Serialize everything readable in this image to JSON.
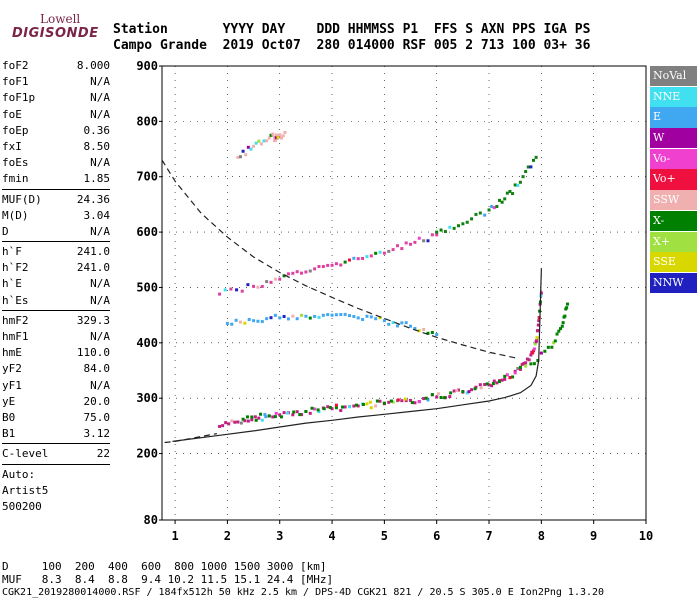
{
  "logo": {
    "top": "Lowell",
    "main": "DIGISONDE"
  },
  "header": {
    "row1": "Station       YYYY DAY    DDD HHMMSS P1  FFS S AXN PPS IGA PS",
    "row2": "Campo Grande  2019 Oct07  280 014000 RSF 005 2 713 100 03+ 36"
  },
  "params": {
    "g1": [
      [
        "foF2",
        "8.000"
      ],
      [
        "foF1",
        "N/A"
      ],
      [
        "foF1p",
        "N/A"
      ],
      [
        "foE",
        "N/A"
      ],
      [
        "foEp",
        "0.36"
      ],
      [
        "fxI",
        "8.50"
      ],
      [
        "foEs",
        "N/A"
      ],
      [
        "fmin",
        "1.85"
      ]
    ],
    "g2": [
      [
        "MUF(D)",
        "24.36"
      ],
      [
        "M(D)",
        "3.04"
      ],
      [
        "D",
        "N/A"
      ]
    ],
    "g3": [
      [
        "h`F",
        "241.0"
      ],
      [
        "h`F2",
        "241.0"
      ],
      [
        "h`E",
        "N/A"
      ],
      [
        "h`Es",
        "N/A"
      ]
    ],
    "g4": [
      [
        "hmF2",
        "329.3"
      ],
      [
        "hmF1",
        "N/A"
      ],
      [
        "hmE",
        "110.0"
      ],
      [
        "yF2",
        "84.0"
      ],
      [
        "yF1",
        "N/A"
      ],
      [
        "yE",
        "20.0"
      ],
      [
        "B0",
        "75.0"
      ],
      [
        "B1",
        "3.12"
      ]
    ],
    "g5": [
      [
        "C-level",
        "22"
      ]
    ],
    "autoscaler": [
      "Auto:",
      "Artist5",
      "500200"
    ]
  },
  "legend": [
    {
      "label": "NoVal",
      "color": "#808080"
    },
    {
      "label": "NNE",
      "color": "#40e0f0"
    },
    {
      "label": "E",
      "color": "#40a8f0"
    },
    {
      "label": "W",
      "color": "#a000a0"
    },
    {
      "label": "Vo-",
      "color": "#f040d0"
    },
    {
      "label": "Vo+",
      "color": "#f01040"
    },
    {
      "label": "SSW",
      "color": "#f0b0b0"
    },
    {
      "label": "X-",
      "color": "#008000"
    },
    {
      "label": "X+",
      "color": "#a0e040"
    },
    {
      "label": "SSE",
      "color": "#d8d800"
    },
    {
      "label": "NNW",
      "color": "#2020c0"
    }
  ],
  "footer": {
    "d_row": "D     100  200  400  600  800 1000 1500 3000 [km]",
    "muf_row": "MUF   8.3  8.4  8.8  9.4 10.2 11.5 15.1 24.4 [MHz]",
    "info": "CGK21_2019280014000.RSF / 184fx512h 50 kHz 2.5 km / DPS-4D CGK21 821 / 20.5 S 305.0 E Ion2Png 1.3.20"
  },
  "chart_data": {
    "type": "scatter",
    "xlim": [
      0.75,
      10
    ],
    "ylim": [
      80,
      900
    ],
    "x_ticks": [
      1,
      2,
      3,
      4,
      5,
      6,
      7,
      8,
      9,
      10
    ],
    "y_ticks": [
      80,
      200,
      300,
      400,
      500,
      600,
      700,
      800,
      900
    ],
    "grid": true,
    "series": [
      {
        "name": "O-trace (hmF2 profile)",
        "color": "#c02080",
        "x": [
          1.85,
          2.2,
          2.6,
          3.0,
          3.5,
          4.0,
          4.5,
          5.0,
          5.5,
          6.0,
          6.5,
          7.0,
          7.3,
          7.6,
          7.8,
          7.9,
          7.95,
          8.0
        ],
        "y": [
          249,
          257,
          264,
          270,
          276,
          281,
          286,
          290,
          296,
          302,
          311,
          324,
          334,
          352,
          378,
          402,
          440,
          490
        ]
      },
      {
        "name": "X-trace",
        "color": "#008000",
        "x": [
          2.3,
          2.8,
          3.5,
          4.2,
          5.0,
          5.8,
          6.5,
          7.2,
          7.8,
          8.2,
          8.4,
          8.5
        ],
        "y": [
          262,
          268,
          276,
          284,
          291,
          300,
          312,
          330,
          362,
          392,
          430,
          470
        ]
      },
      {
        "name": "Second-hop",
        "color": "#e040a0",
        "x": [
          1.85,
          2.5,
          3.0,
          3.5,
          4.0,
          4.5,
          5.0,
          5.5,
          6.0
        ],
        "y": [
          488,
          502,
          515,
          528,
          540,
          552,
          562,
          578,
          595
        ]
      },
      {
        "name": "Second-hop X",
        "color": "#108010",
        "x": [
          6.0,
          6.5,
          7.0,
          7.3,
          7.6,
          7.9
        ],
        "y": [
          600,
          615,
          640,
          660,
          690,
          735
        ]
      },
      {
        "name": "Oblique (E)",
        "color": "#40a8f0",
        "x": [
          2.0,
          2.5,
          3.0,
          3.5,
          4.0,
          4.5,
          5.0,
          5.5,
          6.0
        ],
        "y": [
          435,
          440,
          445,
          448,
          450,
          445,
          440,
          430,
          415
        ]
      },
      {
        "name": "Faint echoes",
        "color": "#f0b0b0",
        "x": [
          2.2,
          2.5,
          2.8,
          3.0,
          2.9,
          3.1
        ],
        "y": [
          735,
          755,
          770,
          775,
          765,
          780
        ]
      }
    ],
    "curves": [
      {
        "name": "Electron density profile",
        "style": "solid",
        "x": [
          0.95,
          1.85,
          2.5,
          3.0,
          3.5,
          4.0,
          4.5,
          5.0,
          5.5,
          6.0,
          6.5,
          7.0,
          7.3,
          7.6,
          7.8,
          7.9,
          7.95,
          8.0
        ],
        "y": [
          222,
          233,
          241,
          248,
          255,
          260,
          266,
          271,
          276,
          281,
          288,
          295,
          301,
          310,
          323,
          340,
          368,
          535
        ]
      },
      {
        "name": "Profile lower bound",
        "style": "dashed",
        "x": [
          0.75,
          1.0,
          1.5,
          2.0,
          2.5,
          3.0,
          3.5,
          4.0,
          4.5,
          5.0,
          5.5,
          6.0,
          6.5,
          7.0,
          7.5
        ],
        "y": [
          730,
          692,
          634,
          591,
          555,
          527,
          503,
          482,
          462,
          444,
          426,
          410,
          396,
          383,
          373
        ]
      },
      {
        "name": "Lower dashed",
        "style": "dashed",
        "x": [
          0.8,
          1.0,
          1.4,
          1.8
        ],
        "y": [
          220,
          222,
          229,
          236
        ]
      }
    ]
  }
}
